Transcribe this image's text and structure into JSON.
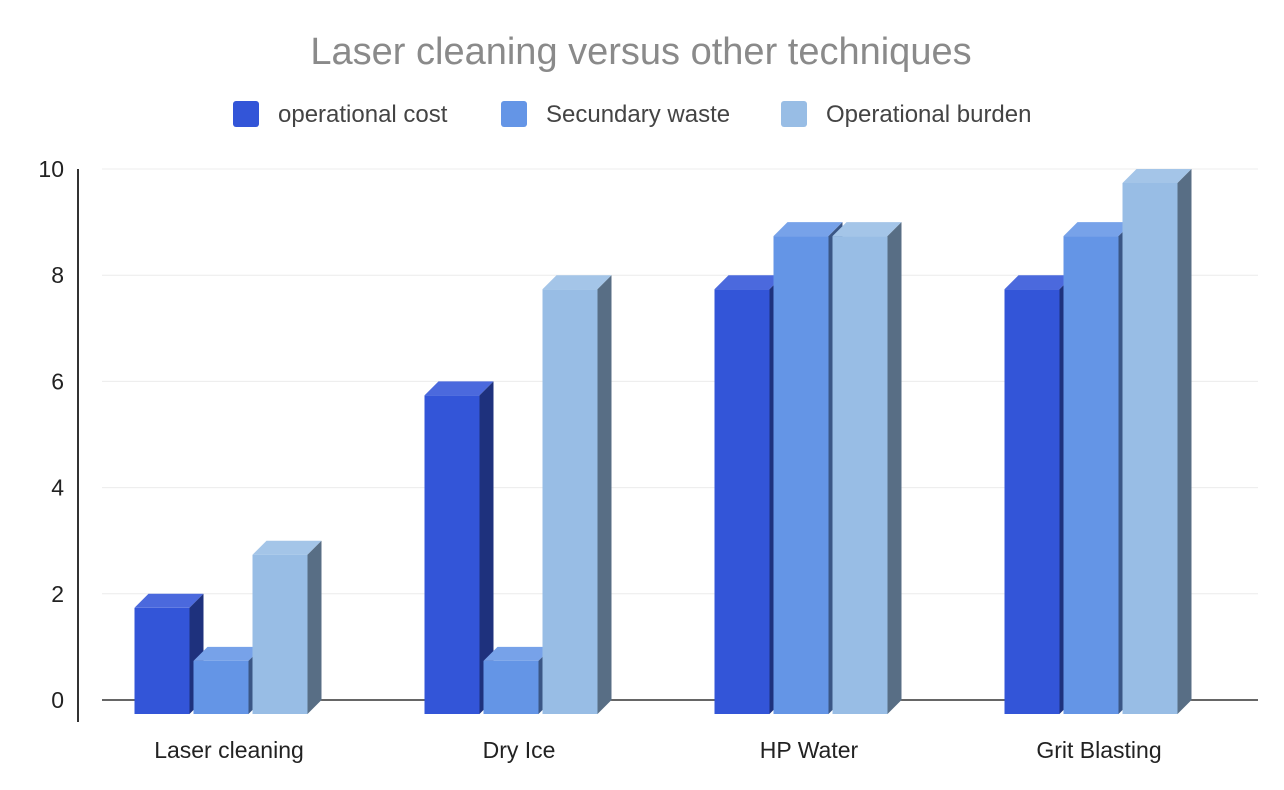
{
  "chart_data": {
    "type": "bar",
    "title": "Laser cleaning versus other techniques",
    "categories": [
      "Laser cleaning",
      "Dry Ice",
      "HP Water",
      "Grit Blasting"
    ],
    "series": [
      {
        "name": "operational cost",
        "values": [
          2,
          6,
          8,
          8
        ],
        "color": "#3355d8"
      },
      {
        "name": "Secundary waste",
        "values": [
          1,
          1,
          9,
          9
        ],
        "color": "#6495e6"
      },
      {
        "name": "Operational burden",
        "values": [
          3,
          8,
          9,
          10
        ],
        "color": "#98bde5"
      }
    ],
    "yticks": [
      "0",
      "2",
      "4",
      "6",
      "8",
      "10"
    ],
    "ylim": [
      0,
      10
    ],
    "xlabel": "",
    "ylabel": "",
    "legend_position": "top",
    "grid": true,
    "style": "3d"
  }
}
